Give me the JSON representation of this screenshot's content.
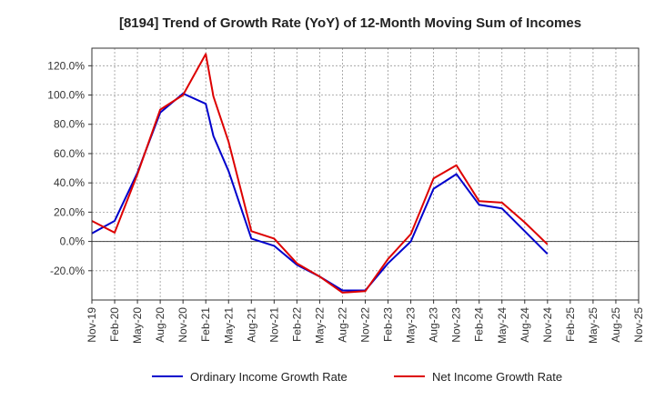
{
  "chart_data": {
    "type": "line",
    "title": "[8194]  Trend of Growth Rate (YoY) of 12-Month Moving Sum of Incomes",
    "xlabel": "",
    "ylabel": "",
    "ylim": [
      -40,
      132
    ],
    "y_ticks": [
      -20,
      0,
      20,
      40,
      60,
      80,
      100,
      120
    ],
    "y_tick_labels": [
      "-20.0%",
      "0.0%",
      "20.0%",
      "40.0%",
      "60.0%",
      "80.0%",
      "100.0%",
      "120.0%"
    ],
    "x": [
      "Nov-19",
      "Dec-19",
      "Jan-20",
      "Feb-20",
      "Mar-20",
      "Apr-20",
      "May-20",
      "Jun-20",
      "Jul-20",
      "Aug-20",
      "Sep-20",
      "Oct-20",
      "Nov-20",
      "Dec-20",
      "Jan-21",
      "Feb-21",
      "Mar-21",
      "Apr-21",
      "May-21",
      "Jun-21",
      "Jul-21",
      "Aug-21",
      "Sep-21",
      "Oct-21",
      "Nov-21",
      "Dec-21",
      "Jan-22",
      "Feb-22",
      "Mar-22",
      "Apr-22",
      "May-22",
      "Jun-22",
      "Jul-22",
      "Aug-22",
      "Sep-22",
      "Oct-22",
      "Nov-22",
      "Dec-22",
      "Jan-23",
      "Feb-23",
      "Mar-23",
      "Apr-23",
      "May-23",
      "Jun-23",
      "Jul-23",
      "Aug-23",
      "Sep-23",
      "Oct-23",
      "Nov-23",
      "Dec-23",
      "Jan-24",
      "Feb-24",
      "Mar-24",
      "Apr-24",
      "May-24",
      "Jun-24",
      "Jul-24",
      "Aug-24",
      "Sep-24",
      "Oct-24",
      "Nov-24",
      "Dec-24",
      "Jan-25",
      "Feb-25",
      "Mar-25",
      "Apr-25",
      "May-25",
      "Jun-25",
      "Jul-25",
      "Aug-25",
      "Sep-25",
      "Oct-25",
      "Nov-25"
    ],
    "x_tick_labels": [
      "Nov-19",
      "Feb-20",
      "May-20",
      "Aug-20",
      "Nov-20",
      "Feb-21",
      "May-21",
      "Aug-21",
      "Nov-21",
      "Feb-22",
      "May-22",
      "Aug-22",
      "Nov-22",
      "Feb-23",
      "May-23",
      "Aug-23",
      "Nov-23",
      "Feb-24",
      "May-24",
      "Aug-24",
      "Nov-24",
      "Feb-25",
      "May-25",
      "Aug-25",
      "Nov-25"
    ],
    "grid": true,
    "legend_position": "bottom",
    "series": [
      {
        "name": "Ordinary Income Growth Rate",
        "color": "#0000cc",
        "x": [
          "Nov-19",
          "Feb-20",
          "May-20",
          "Aug-20",
          "Nov-20",
          "Feb-21",
          "Mar-21",
          "May-21",
          "Aug-21",
          "Nov-21",
          "Feb-22",
          "May-22",
          "Aug-22",
          "Nov-22",
          "Feb-23",
          "May-23",
          "Aug-23",
          "Nov-23",
          "Feb-24",
          "May-24",
          "Aug-24",
          "Nov-24"
        ],
        "values": [
          5.5,
          14,
          47,
          88,
          101,
          94,
          72,
          48,
          2,
          -3,
          -16,
          -24,
          -33.5,
          -33.5,
          -15,
          0,
          36,
          46,
          25,
          22.5,
          7,
          -8.5
        ]
      },
      {
        "name": "Net Income Growth Rate",
        "color": "#dd0000",
        "x": [
          "Nov-19",
          "Feb-20",
          "May-20",
          "Aug-20",
          "Nov-20",
          "Feb-21",
          "Mar-21",
          "May-21",
          "Aug-21",
          "Nov-21",
          "Feb-22",
          "May-22",
          "Aug-22",
          "Nov-22",
          "Feb-23",
          "May-23",
          "Aug-23",
          "Nov-23",
          "Feb-24",
          "May-24",
          "Aug-24",
          "Nov-24"
        ],
        "values": [
          14,
          6,
          46,
          90,
          100,
          128,
          99,
          68,
          7,
          2,
          -15,
          -24,
          -35,
          -34,
          -12,
          5,
          43,
          52,
          27.5,
          26.5,
          13,
          -2
        ]
      }
    ]
  }
}
